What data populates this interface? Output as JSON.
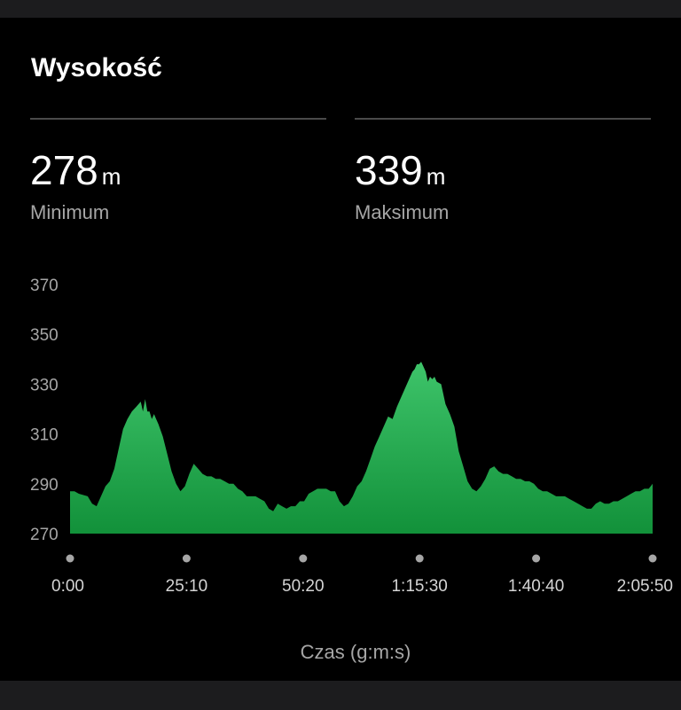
{
  "header": {
    "title": "Wysokość"
  },
  "stats": {
    "min": {
      "value": "278",
      "unit": "m",
      "label": "Minimum"
    },
    "max": {
      "value": "339",
      "unit": "m",
      "label": "Maksimum"
    }
  },
  "colors": {
    "fill_top": "#3ec46a",
    "fill_bottom": "#12913a",
    "background": "#000000"
  },
  "chart_data": {
    "type": "area",
    "xlabel": "Czas (g:m:s)",
    "ylabel": "",
    "x_unit": "seconds",
    "xlim": [
      0,
      7550
    ],
    "ylim": [
      270,
      370
    ],
    "yticks": [
      270,
      290,
      310,
      330,
      350,
      370
    ],
    "xticks": [
      {
        "value": 0,
        "label": "0:00"
      },
      {
        "value": 1510,
        "label": "25:10"
      },
      {
        "value": 3020,
        "label": "50:20"
      },
      {
        "value": 4530,
        "label": "1:15:30"
      },
      {
        "value": 6040,
        "label": "1:40:40"
      },
      {
        "value": 7550,
        "label": "2:05:50"
      }
    ],
    "grid": false,
    "series": [
      {
        "x": [
          0,
          57,
          114,
          229,
          286,
          344,
          401,
          458,
          515,
          573,
          630,
          687,
          744,
          801,
          859,
          916,
          945,
          973,
          1002,
          1030,
          1059,
          1088,
          1116,
          1145,
          1202,
          1259,
          1316,
          1374,
          1431,
          1488,
          1546,
          1603,
          1660,
          1717,
          1775,
          1832,
          1889,
          1946,
          2004,
          2061,
          2118,
          2175,
          2233,
          2290,
          2347,
          2404,
          2462,
          2519,
          2576,
          2633,
          2691,
          2748,
          2805,
          2863,
          2920,
          2977,
          3034,
          3092,
          3149,
          3206,
          3263,
          3321,
          3378,
          3435,
          3492,
          3550,
          3607,
          3664,
          3721,
          3779,
          3836,
          3893,
          3950,
          4008,
          4065,
          4122,
          4179,
          4237,
          4294,
          4351,
          4408,
          4437,
          4466,
          4494,
          4523,
          4551,
          4580,
          4609,
          4637,
          4666,
          4694,
          4723,
          4752,
          4809,
          4866,
          4923,
          4981,
          5038,
          5095,
          5152,
          5210,
          5267,
          5324,
          5381,
          5439,
          5496,
          5553,
          5610,
          5668,
          5725,
          5782,
          5839,
          5897,
          5954,
          6011,
          6068,
          6126,
          6183,
          6240,
          6298,
          6355,
          6412,
          6469,
          6527,
          6584,
          6641,
          6698,
          6756,
          6813,
          6870,
          6927,
          6985,
          7042,
          7099,
          7156,
          7214,
          7271,
          7328,
          7385,
          7443,
          7500,
          7550
        ],
        "y": [
          287,
          287,
          286,
          285,
          282,
          281,
          285,
          289,
          291,
          296,
          304,
          312,
          316,
          319,
          321,
          323,
          319,
          324,
          319,
          319,
          316,
          318,
          316,
          314,
          309,
          302,
          295,
          290,
          287,
          289,
          294,
          298,
          296,
          294,
          293,
          293,
          292,
          292,
          291,
          290,
          290,
          288,
          287,
          285,
          285,
          285,
          284,
          283,
          280,
          279,
          282,
          281,
          280,
          281,
          281,
          283,
          283,
          286,
          287,
          288,
          288,
          288,
          287,
          287,
          283,
          281,
          282,
          285,
          289,
          291,
          295,
          300,
          305,
          309,
          313,
          317,
          316,
          321,
          325,
          329,
          333,
          335,
          336,
          338,
          338,
          339,
          337,
          335,
          331,
          333,
          332,
          333,
          331,
          330,
          322,
          318,
          313,
          303,
          297,
          291,
          288,
          287,
          289,
          292,
          296,
          297,
          295,
          294,
          294,
          293,
          292,
          292,
          291,
          291,
          290,
          288,
          287,
          287,
          286,
          285,
          285,
          285,
          284,
          283,
          282,
          281,
          280,
          280,
          282,
          283,
          282,
          282,
          283,
          283,
          284,
          285,
          286,
          287,
          287,
          288,
          288,
          290
        ]
      }
    ]
  }
}
